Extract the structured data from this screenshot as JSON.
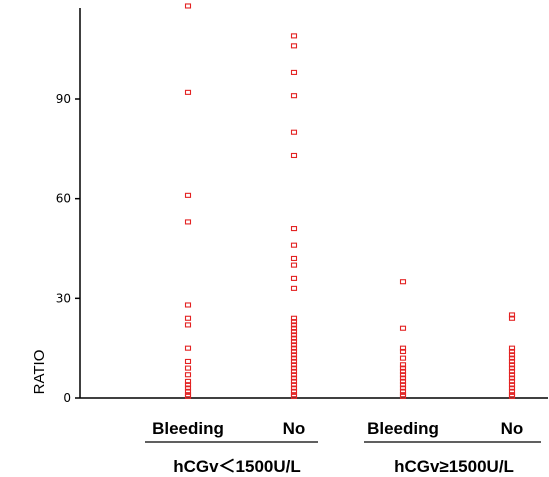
{
  "chart_data": {
    "type": "scatter",
    "ylabel": "RATIO",
    "yticks": [
      0,
      30,
      60,
      90
    ],
    "ylim": [
      0,
      118
    ],
    "marker_color": "#e32222",
    "categories": [
      {
        "label": "Bleeding",
        "group": 0,
        "values": [
          118,
          92,
          61,
          53,
          28,
          24,
          22,
          15,
          11,
          9,
          7,
          5,
          4,
          3,
          2,
          1,
          0.5
        ]
      },
      {
        "label": "No",
        "group": 0,
        "values": [
          109,
          106,
          98,
          91,
          80,
          73,
          51,
          46,
          42,
          40,
          36,
          33,
          24,
          23,
          22,
          21,
          20,
          19,
          18,
          17,
          16,
          15,
          14,
          13,
          12,
          11,
          10,
          9,
          8,
          7,
          6,
          5,
          4,
          3,
          2,
          1,
          0.5
        ]
      },
      {
        "label": "Bleeding",
        "group": 1,
        "values": [
          35,
          21,
          15,
          14,
          12,
          10,
          9,
          8,
          7,
          6,
          5,
          4,
          3,
          2,
          1,
          0.5
        ]
      },
      {
        "label": "No",
        "group": 1,
        "values": [
          25,
          24,
          15,
          14,
          13,
          12,
          11,
          10,
          9,
          8,
          7,
          6,
          5,
          4,
          3,
          2,
          1,
          0.5
        ]
      }
    ],
    "groups": [
      {
        "label": "hCGv＜1500U/L"
      },
      {
        "label": "hCGv≥1500U/L"
      }
    ]
  }
}
